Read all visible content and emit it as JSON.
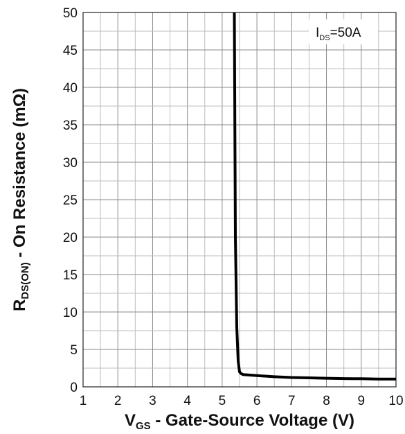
{
  "chart_data": {
    "type": "line",
    "annotation": {
      "main": "I",
      "sub": "DS",
      "suffix": "=50A"
    },
    "xlabel": {
      "main": "V",
      "sub": "GS",
      "rest": " - Gate-Source Voltage (V)"
    },
    "ylabel": {
      "main": "R",
      "sub": "DS(ON)",
      "rest": " - On Resistance (mΩ)"
    },
    "xlim": [
      1,
      10
    ],
    "ylim": [
      0,
      50
    ],
    "x_ticks": [
      1,
      2,
      3,
      4,
      5,
      6,
      7,
      8,
      9,
      10
    ],
    "y_ticks": [
      0,
      5,
      10,
      15,
      20,
      25,
      30,
      35,
      40,
      45,
      50
    ],
    "grid": true,
    "series": [
      {
        "x": [
          5.35,
          5.38,
          5.42,
          5.46,
          5.5,
          5.55,
          5.6,
          6.0,
          6.5,
          7.0,
          7.5,
          8.0,
          8.5,
          9.0,
          9.5,
          10.0
        ],
        "y": [
          50,
          20,
          8,
          3.5,
          2.0,
          1.75,
          1.65,
          1.5,
          1.35,
          1.25,
          1.2,
          1.15,
          1.1,
          1.08,
          1.05,
          1.05
        ]
      }
    ]
  }
}
